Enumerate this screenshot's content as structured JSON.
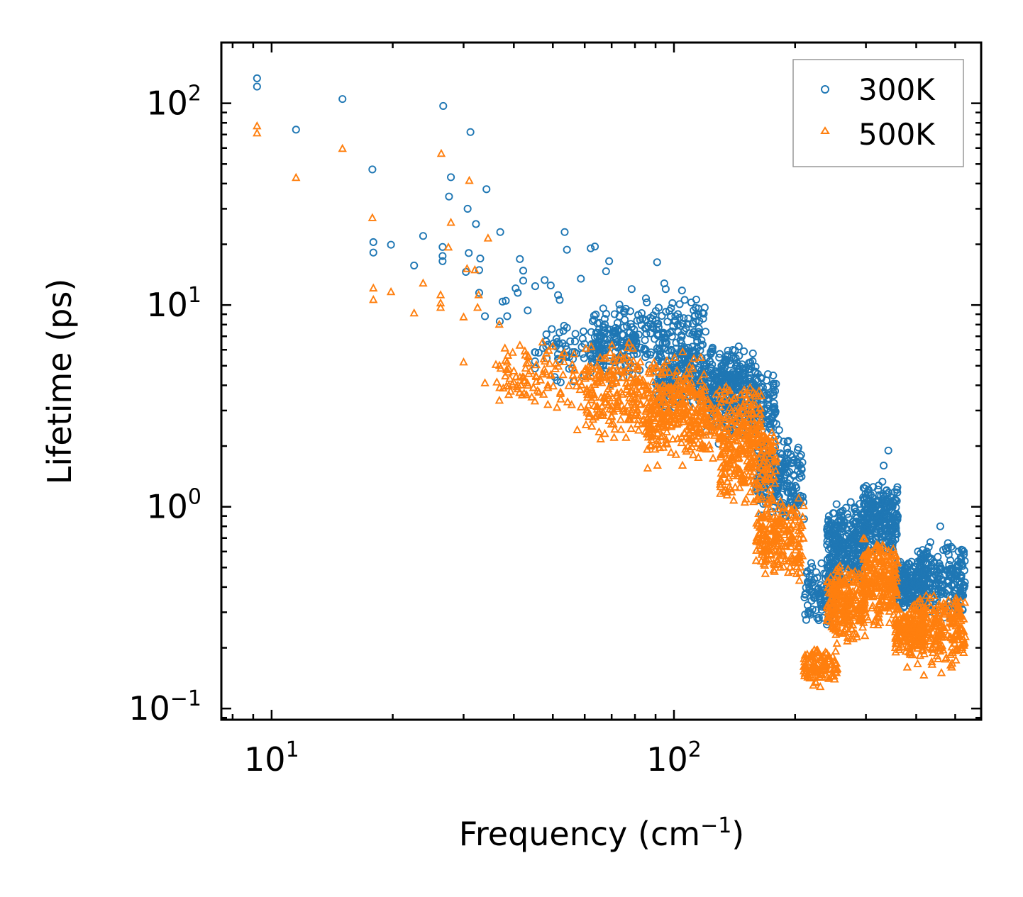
{
  "chart_data": {
    "type": "scatter",
    "title": "",
    "xlabel": "Frequency (cm",
    "xlabel_sup": "−1",
    "xlabel_suffix": ")",
    "ylabel": "Lifetime (ps)",
    "xscale": "log",
    "yscale": "log",
    "xlim": [
      7.5,
      580
    ],
    "ylim": [
      0.088,
      200
    ],
    "x_ticks": [
      {
        "value": 10,
        "base": "10",
        "exp": "1"
      },
      {
        "value": 100,
        "base": "10",
        "exp": "2"
      }
    ],
    "y_ticks": [
      {
        "value": 100,
        "base": "10",
        "exp": "2"
      },
      {
        "value": 10,
        "base": "10",
        "exp": "1"
      },
      {
        "value": 1,
        "base": "10",
        "exp": "0"
      },
      {
        "value": 0.1,
        "base": "10",
        "exp": "−1"
      }
    ],
    "legend": {
      "location": "top-right"
    },
    "series": [
      {
        "name": "300K",
        "marker": "circle",
        "color": "#1f77b4",
        "points": [
          [
            9.2,
            133
          ],
          [
            9.2,
            121
          ],
          [
            11.5,
            74
          ],
          [
            15.0,
            105
          ],
          [
            17.8,
            47
          ],
          [
            17.9,
            20.5
          ],
          [
            17.9,
            18.2
          ],
          [
            19.8,
            19.9
          ],
          [
            22.6,
            15.7
          ],
          [
            23.8,
            22
          ],
          [
            26.7,
            97
          ],
          [
            26.6,
            19.4
          ],
          [
            26.6,
            17.5
          ],
          [
            26.6,
            16.5
          ],
          [
            27.6,
            34.5
          ],
          [
            27.9,
            43
          ],
          [
            30.7,
            30
          ],
          [
            31.2,
            72
          ],
          [
            30.9,
            18.1
          ],
          [
            30.4,
            14.6
          ],
          [
            32.2,
            25.2
          ],
          [
            33.0,
            17
          ],
          [
            32.8,
            14.9
          ],
          [
            32.8,
            11.5
          ],
          [
            34.2,
            37.5
          ],
          [
            33.9,
            8.8
          ],
          [
            37.0,
            23
          ],
          [
            37.5,
            10.4
          ],
          [
            38.2,
            10.5
          ],
          [
            38.5,
            8.8
          ],
          [
            36.9,
            8.3
          ],
          [
            40.4,
            12.1
          ],
          [
            40.9,
            11.5
          ],
          [
            41.4,
            16.9
          ],
          [
            42.2,
            14.8
          ],
          [
            42.2,
            13.2
          ],
          [
            43.3,
            9.4
          ],
          [
            45.2,
            12.4
          ],
          [
            47.7,
            13.3
          ],
          [
            49.4,
            12.5
          ],
          [
            51.5,
            11.2
          ],
          [
            52.0,
            10.6
          ],
          [
            53.5,
            23
          ],
          [
            54.2,
            18.8
          ],
          [
            56.9,
            7.2
          ],
          [
            58.7,
            13.5
          ],
          [
            62.1,
            19.1
          ],
          [
            63.6,
            19.5
          ],
          [
            67.8,
            14.7
          ],
          [
            69.0,
            16.5
          ],
          [
            78.5,
            12.0
          ],
          [
            85.6,
            10.3
          ],
          [
            90.8,
            16.3
          ],
          [
            94.6,
            12.8
          ],
          [
            95.4,
            12.0
          ],
          [
            104.7,
            11.8
          ],
          [
            106.3,
            10.6
          ],
          [
            110.4,
            10.3
          ],
          [
            133.7,
            4.9
          ],
          [
            167.5,
            2.6
          ],
          [
            182.6,
            2.4
          ],
          [
            191.5,
            2.1
          ],
          [
            201.5,
            1.24
          ],
          [
            210.5,
            0.87
          ],
          [
            221.0,
            0.31
          ],
          [
            230.5,
            0.345
          ],
          [
            270.0,
            0.92
          ],
          [
            296.0,
            1.24
          ],
          [
            332.0,
            1.6
          ],
          [
            341.0,
            1.9
          ],
          [
            358.0,
            0.73
          ],
          [
            404.0,
            0.6
          ],
          [
            425.0,
            0.6
          ],
          [
            459.0,
            0.8
          ],
          [
            493.0,
            0.62
          ],
          [
            510.0,
            0.6
          ]
        ],
        "bands": [
          {
            "x": [
              45,
              80
            ],
            "lo": 3.8,
            "hi": 9.0,
            "n": 110
          },
          {
            "x": [
              62,
              120
            ],
            "lo": 4.5,
            "hi": 11.0,
            "n": 260
          },
          {
            "x": [
              90,
              160
            ],
            "lo": 3.0,
            "hi": 6.5,
            "n": 340
          },
          {
            "x": [
              120,
              180
            ],
            "lo": 2.0,
            "hi": 4.8,
            "n": 220
          },
          {
            "x": [
              160,
              210
            ],
            "lo": 0.85,
            "hi": 2.3,
            "n": 200
          },
          {
            "x": [
              210,
              255
            ],
            "lo": 0.25,
            "hi": 0.55,
            "n": 110
          },
          {
            "x": [
              240,
              300
            ],
            "lo": 0.4,
            "hi": 1.1,
            "n": 260
          },
          {
            "x": [
              295,
              360
            ],
            "lo": 0.55,
            "hi": 1.4,
            "n": 240
          },
          {
            "x": [
              355,
              420
            ],
            "lo": 0.3,
            "hi": 0.55,
            "n": 180
          },
          {
            "x": [
              400,
              530
            ],
            "lo": 0.28,
            "hi": 0.68,
            "n": 220
          }
        ]
      },
      {
        "name": "500K",
        "marker": "triangle",
        "color": "#ff7f0e",
        "points": [
          [
            9.2,
            77
          ],
          [
            9.2,
            71
          ],
          [
            11.5,
            42.7
          ],
          [
            15.0,
            59.5
          ],
          [
            17.8,
            27
          ],
          [
            17.9,
            12.1
          ],
          [
            17.9,
            10.6
          ],
          [
            19.8,
            11.6
          ],
          [
            22.6,
            9.1
          ],
          [
            23.8,
            12.8
          ],
          [
            26.4,
            56.2
          ],
          [
            26.3,
            11.2
          ],
          [
            26.3,
            10.2
          ],
          [
            26.3,
            9.7
          ],
          [
            27.5,
            19.3
          ],
          [
            27.9,
            25.6
          ],
          [
            30.0,
            8.7
          ],
          [
            30.6,
            15.1
          ],
          [
            31.0,
            41.3
          ],
          [
            30.0,
            5.2
          ],
          [
            32.0,
            14.9
          ],
          [
            32.7,
            11.2
          ],
          [
            32.5,
            9.7
          ],
          [
            33.9,
            4.1
          ],
          [
            34.5,
            21.4
          ],
          [
            36.8,
            8.0
          ],
          [
            38.0,
            6.1
          ],
          [
            38.5,
            5.2
          ],
          [
            40.0,
            4.7
          ],
          [
            40.5,
            4.4
          ],
          [
            41.4,
            6.3
          ],
          [
            42.6,
            5.9
          ],
          [
            43.2,
            4.1
          ],
          [
            45.5,
            4.4
          ],
          [
            47.4,
            3.6
          ],
          [
            51.2,
            3.1
          ],
          [
            53.0,
            4.5
          ],
          [
            54.4,
            3.3
          ],
          [
            57.5,
            2.4
          ],
          [
            62.5,
            2.5
          ],
          [
            67.3,
            2.3
          ],
          [
            71.0,
            2.2
          ],
          [
            76.0,
            2.2
          ],
          [
            86.0,
            1.55
          ],
          [
            91.0,
            1.6
          ],
          [
            105.0,
            1.6
          ],
          [
            115.0,
            1.75
          ],
          [
            150.0,
            1.05
          ],
          [
            172.0,
            0.55
          ],
          [
            184.0,
            0.5
          ],
          [
            197.0,
            0.48
          ],
          [
            205.0,
            0.43
          ],
          [
            212.0,
            0.15
          ],
          [
            222.0,
            0.13
          ],
          [
            231.0,
            0.128
          ],
          [
            267.0,
            0.35
          ],
          [
            296.0,
            0.55
          ],
          [
            355.0,
            0.2
          ],
          [
            380.0,
            0.16
          ],
          [
            418.0,
            0.146
          ],
          [
            437.0,
            0.17
          ],
          [
            462.0,
            0.15
          ],
          [
            490.0,
            0.16
          ]
        ],
        "bands": [
          {
            "x": [
              36,
              80
            ],
            "lo": 3.0,
            "hi": 7.0,
            "n": 130
          },
          {
            "x": [
              60,
              120
            ],
            "lo": 2.0,
            "hi": 6.0,
            "n": 300
          },
          {
            "x": [
              85,
              165
            ],
            "lo": 1.7,
            "hi": 4.2,
            "n": 360
          },
          {
            "x": [
              130,
              180
            ],
            "lo": 1.0,
            "hi": 2.8,
            "n": 220
          },
          {
            "x": [
              160,
              210
            ],
            "lo": 0.42,
            "hi": 1.2,
            "n": 220
          },
          {
            "x": [
              210,
              255
            ],
            "lo": 0.13,
            "hi": 0.2,
            "n": 110
          },
          {
            "x": [
              240,
              300
            ],
            "lo": 0.2,
            "hi": 0.55,
            "n": 260
          },
          {
            "x": [
              295,
              360
            ],
            "lo": 0.25,
            "hi": 0.75,
            "n": 240
          },
          {
            "x": [
              355,
              420
            ],
            "lo": 0.18,
            "hi": 0.33,
            "n": 180
          },
          {
            "x": [
              400,
              530
            ],
            "lo": 0.16,
            "hi": 0.38,
            "n": 220
          }
        ]
      }
    ]
  }
}
